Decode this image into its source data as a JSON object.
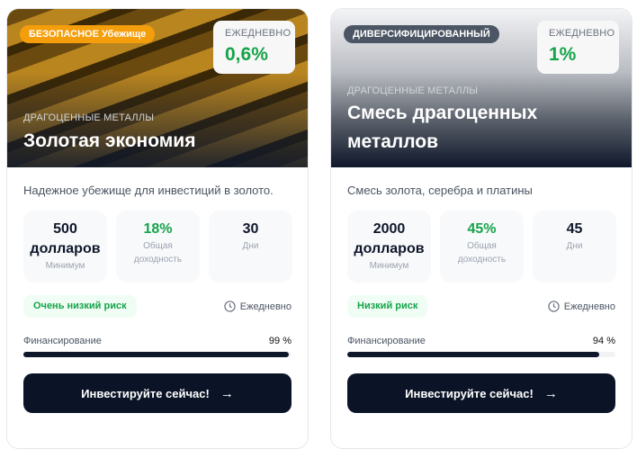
{
  "cards": [
    {
      "tag": "БЕЗОПАСНОЕ Убежище",
      "tag_color": "#f59e0b",
      "daily_label": "ЕЖЕДНЕВНО",
      "daily_value": "0,6%",
      "category": "ДРАГОЦЕННЫЕ МЕТАЛЛЫ",
      "title": "Золотая экономия",
      "description": "Надежное убежище для инвестиций в золото.",
      "min_value": "500 долларов",
      "min_label": "Минимум",
      "return_value": "18%",
      "return_label": "Общая доходность",
      "days_value": "30",
      "days_label": "Дни",
      "risk": "Очень низкий риск",
      "frequency": "Ежедневно",
      "funding_label": "Финансирование",
      "funding_text": "99 %",
      "funding_percent": 99,
      "button": "Инвестируйте сейчас!"
    },
    {
      "tag": "ДИВЕРСИФИЦИРОВАННЫЙ",
      "tag_color": "#4b5563",
      "daily_label": "ЕЖЕДНЕВНО",
      "daily_value": "1%",
      "category": "ДРАГОЦЕННЫЕ МЕТАЛЛЫ",
      "title": "Смесь драгоценных металлов",
      "description": "Смесь золота, серебра и платины",
      "min_value": "2000 долларов",
      "min_label": "Минимум",
      "return_value": "45%",
      "return_label": "Общая доходность",
      "days_value": "45",
      "days_label": "Дни",
      "risk": "Низкий риск",
      "frequency": "Ежедневно",
      "funding_label": "Финансирование",
      "funding_text": "94 %",
      "funding_percent": 94,
      "button": "Инвестируйте сейчас!"
    }
  ]
}
